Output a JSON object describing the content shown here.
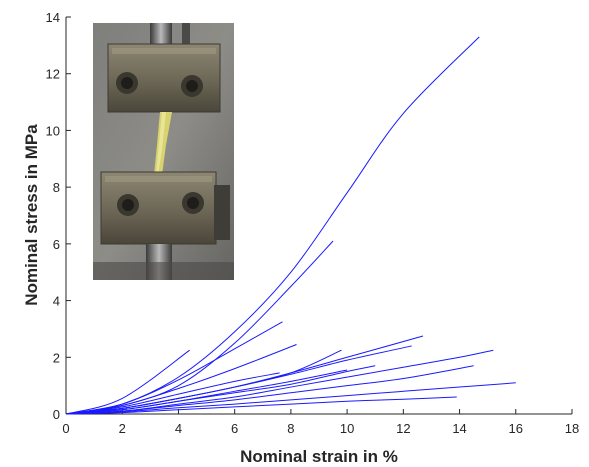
{
  "chart_data": {
    "type": "line",
    "xlabel": "Nominal strain in %",
    "ylabel": "Nominal stress in MPa",
    "xlim": [
      0,
      18
    ],
    "ylim": [
      0,
      14
    ],
    "xticks": [
      "0",
      "2",
      "4",
      "6",
      "8",
      "10",
      "12",
      "14",
      "16",
      "18"
    ],
    "yticks": [
      "0",
      "2",
      "4",
      "6",
      "8",
      "10",
      "12",
      "14"
    ],
    "grid": false,
    "line_color": "#1a1aff",
    "inset": "photo of a tensile test specimen clamped between two metal grips",
    "series": [
      {
        "x": [
          0,
          2,
          4,
          6,
          8,
          10,
          12,
          14.7
        ],
        "y": [
          0,
          0.35,
          1.3,
          2.9,
          5.0,
          7.8,
          10.6,
          13.3
        ]
      },
      {
        "x": [
          0,
          2,
          4,
          6,
          8,
          9.5
        ],
        "y": [
          0,
          0.3,
          1.0,
          2.5,
          4.5,
          6.1
        ]
      },
      {
        "x": [
          0,
          2,
          4,
          6,
          7.7
        ],
        "y": [
          0,
          0.35,
          1.2,
          2.3,
          3.25
        ]
      },
      {
        "x": [
          0,
          2,
          4.4
        ],
        "y": [
          0,
          0.55,
          2.25
        ]
      },
      {
        "x": [
          0,
          2,
          4,
          6,
          8.2
        ],
        "y": [
          0,
          0.3,
          0.9,
          1.6,
          2.45
        ]
      },
      {
        "x": [
          0,
          2,
          4,
          6,
          7.6
        ],
        "y": [
          0,
          0.25,
          0.7,
          1.15,
          1.45
        ]
      },
      {
        "x": [
          0,
          2,
          4,
          6,
          8,
          10,
          12.7
        ],
        "y": [
          0,
          0.2,
          0.55,
          0.95,
          1.45,
          2.0,
          2.75
        ]
      },
      {
        "x": [
          0,
          2,
          4,
          6,
          8,
          10,
          12.3
        ],
        "y": [
          0,
          0.2,
          0.55,
          0.95,
          1.4,
          1.9,
          2.4
        ]
      },
      {
        "x": [
          0,
          2,
          4,
          6,
          8,
          9.8
        ],
        "y": [
          0,
          0.2,
          0.55,
          0.95,
          1.45,
          2.25
        ]
      },
      {
        "x": [
          0,
          2,
          4,
          6,
          8,
          10,
          11
        ],
        "y": [
          0,
          0.15,
          0.45,
          0.75,
          1.05,
          1.5,
          1.7
        ]
      },
      {
        "x": [
          0,
          2,
          4,
          6,
          8,
          10,
          12,
          14,
          15.2
        ],
        "y": [
          0,
          0.1,
          0.35,
          0.6,
          0.95,
          1.3,
          1.65,
          2.0,
          2.25
        ]
      },
      {
        "x": [
          0,
          2,
          4,
          6,
          8,
          10,
          12,
          14.5
        ],
        "y": [
          0,
          0.1,
          0.3,
          0.5,
          0.75,
          1.0,
          1.25,
          1.7
        ]
      },
      {
        "x": [
          0,
          2,
          4,
          6,
          8,
          10,
          12,
          14,
          16
        ],
        "y": [
          0,
          0.08,
          0.22,
          0.35,
          0.5,
          0.65,
          0.8,
          0.95,
          1.1
        ]
      },
      {
        "x": [
          0,
          2,
          4,
          6,
          8,
          10,
          12,
          13.9
        ],
        "y": [
          0,
          0.05,
          0.15,
          0.25,
          0.35,
          0.45,
          0.52,
          0.6
        ]
      },
      {
        "x": [
          0,
          2,
          4,
          6,
          8,
          10
        ],
        "y": [
          0,
          0.15,
          0.45,
          0.8,
          1.15,
          1.55
        ]
      }
    ]
  }
}
